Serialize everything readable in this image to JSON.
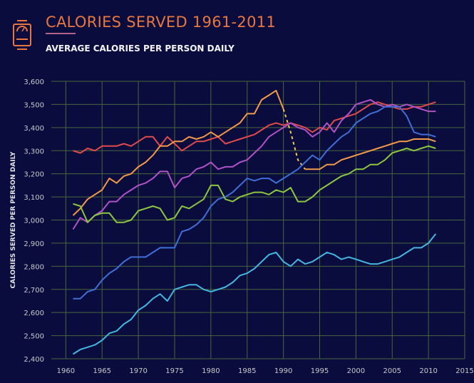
{
  "header": {
    "title": "CALORIES SERVED 1961-2011",
    "subtitle": "AVERAGE CALORIES PER PERSON DAILY",
    "icon": "scale-icon"
  },
  "colors": {
    "background": "#0a0c3e",
    "grid": "#48663c",
    "title": "#e8773f",
    "axis_text": "#c9c9c9"
  },
  "chart_data": {
    "type": "line",
    "title": "CALORIES SERVED 1961-2011",
    "subtitle": "AVERAGE CALORIES PER PERSON DAILY",
    "xlabel": "",
    "ylabel": "CALORIES SERVED PER PERSON DAILY",
    "xlim": [
      1958,
      2015
    ],
    "ylim": [
      2400,
      3600
    ],
    "xticks": [
      1960,
      1965,
      1970,
      1975,
      1980,
      1985,
      1990,
      1995,
      2000,
      2005,
      2010,
      2015
    ],
    "yticks": [
      2400,
      2500,
      2600,
      2700,
      2800,
      2900,
      3000,
      3100,
      3200,
      3300,
      3400,
      3500,
      3600
    ],
    "ytick_labels": [
      "2,400",
      "2,500",
      "2,600",
      "2,700",
      "2,800",
      "2,900",
      "3,000",
      "3,100",
      "3,200",
      "3,300",
      "3,400",
      "3,500",
      "3,600"
    ],
    "grid": true,
    "legend": "none",
    "series": [
      {
        "name": "red series",
        "color": "#e04b4b",
        "x": [
          1961,
          1962,
          1963,
          1964,
          1965,
          1966,
          1967,
          1968,
          1969,
          1970,
          1971,
          1972,
          1973,
          1974,
          1975,
          1976,
          1977,
          1978,
          1979,
          1980,
          1981,
          1982,
          1983,
          1984,
          1985,
          1986,
          1987,
          1988,
          1989,
          1990,
          1991,
          1992,
          1993,
          1994,
          1995,
          1996,
          1997,
          1998,
          1999,
          2000,
          2001,
          2002,
          2003,
          2004,
          2005,
          2006,
          2007,
          2008,
          2009,
          2010,
          2011
        ],
        "values": [
          3300,
          3290,
          3310,
          3300,
          3320,
          3320,
          3320,
          3330,
          3320,
          3340,
          3360,
          3360,
          3320,
          3360,
          3330,
          3300,
          3320,
          3340,
          3340,
          3350,
          3360,
          3330,
          3340,
          3350,
          3360,
          3370,
          3390,
          3410,
          3420,
          3410,
          3420,
          3410,
          3400,
          3380,
          3400,
          3390,
          3430,
          3440,
          3450,
          3460,
          3480,
          3500,
          3510,
          3500,
          3490,
          3480,
          3480,
          3490,
          3490,
          3500,
          3510
        ]
      },
      {
        "name": "orange series",
        "color": "#f2994a",
        "dashed_segment": [
          1990,
          1993
        ],
        "x": [
          1961,
          1962,
          1963,
          1964,
          1965,
          1966,
          1967,
          1968,
          1969,
          1970,
          1971,
          1972,
          1973,
          1974,
          1975,
          1976,
          1977,
          1978,
          1979,
          1980,
          1981,
          1982,
          1983,
          1984,
          1985,
          1986,
          1987,
          1988,
          1989,
          1990,
          1991,
          1992,
          1993,
          1994,
          1995,
          1996,
          1997,
          1998,
          1999,
          2000,
          2001,
          2002,
          2003,
          2004,
          2005,
          2006,
          2007,
          2008,
          2009,
          2010,
          2011
        ],
        "values": [
          3020,
          3050,
          3090,
          3110,
          3130,
          3180,
          3160,
          3190,
          3200,
          3230,
          3250,
          3280,
          3320,
          3320,
          3340,
          3340,
          3360,
          3350,
          3360,
          3380,
          3360,
          3380,
          3400,
          3420,
          3460,
          3460,
          3520,
          3540,
          3560,
          3480,
          3380,
          3260,
          3220,
          3220,
          3220,
          3240,
          3240,
          3260,
          3270,
          3280,
          3290,
          3300,
          3310,
          3320,
          3330,
          3340,
          3340,
          3350,
          3350,
          3350,
          3340
        ]
      },
      {
        "name": "purple series",
        "color": "#b052c8",
        "x": [
          1961,
          1962,
          1963,
          1964,
          1965,
          1966,
          1967,
          1968,
          1969,
          1970,
          1971,
          1972,
          1973,
          1974,
          1975,
          1976,
          1977,
          1978,
          1979,
          1980,
          1981,
          1982,
          1983,
          1984,
          1985,
          1986,
          1987,
          1988,
          1989,
          1990,
          1991,
          1992,
          1993,
          1994,
          1995,
          1996,
          1997,
          1998,
          1999,
          2000,
          2001,
          2002,
          2003,
          2004,
          2005,
          2006,
          2007,
          2008,
          2009,
          2010,
          2011
        ],
        "values": [
          2960,
          3010,
          2990,
          3020,
          3040,
          3080,
          3080,
          3110,
          3130,
          3150,
          3160,
          3180,
          3210,
          3210,
          3140,
          3180,
          3190,
          3220,
          3230,
          3250,
          3220,
          3230,
          3230,
          3250,
          3260,
          3290,
          3320,
          3360,
          3380,
          3400,
          3420,
          3400,
          3390,
          3360,
          3380,
          3420,
          3380,
          3430,
          3460,
          3500,
          3510,
          3520,
          3500,
          3490,
          3500,
          3490,
          3500,
          3490,
          3480,
          3470,
          3470
        ]
      },
      {
        "name": "blue series",
        "color": "#3f6fd6",
        "x": [
          1961,
          1962,
          1963,
          1964,
          1965,
          1966,
          1967,
          1968,
          1969,
          1970,
          1971,
          1972,
          1973,
          1974,
          1975,
          1976,
          1977,
          1978,
          1979,
          1980,
          1981,
          1982,
          1983,
          1984,
          1985,
          1986,
          1987,
          1988,
          1989,
          1990,
          1991,
          1992,
          1993,
          1994,
          1995,
          1996,
          1997,
          1998,
          1999,
          2000,
          2001,
          2002,
          2003,
          2004,
          2005,
          2006,
          2007,
          2008,
          2009,
          2010,
          2011
        ],
        "values": [
          2660,
          2660,
          2690,
          2700,
          2740,
          2770,
          2790,
          2820,
          2840,
          2840,
          2840,
          2860,
          2880,
          2880,
          2880,
          2950,
          2960,
          2980,
          3010,
          3060,
          3090,
          3100,
          3120,
          3150,
          3180,
          3170,
          3180,
          3180,
          3160,
          3180,
          3200,
          3220,
          3250,
          3280,
          3260,
          3300,
          3330,
          3360,
          3380,
          3420,
          3440,
          3460,
          3470,
          3490,
          3490,
          3490,
          3450,
          3380,
          3370,
          3370,
          3360
        ]
      },
      {
        "name": "green series",
        "color": "#8dc63f",
        "x": [
          1961,
          1962,
          1963,
          1964,
          1965,
          1966,
          1967,
          1968,
          1969,
          1970,
          1971,
          1972,
          1973,
          1974,
          1975,
          1976,
          1977,
          1978,
          1979,
          1980,
          1981,
          1982,
          1983,
          1984,
          1985,
          1986,
          1987,
          1988,
          1989,
          1990,
          1991,
          1992,
          1993,
          1994,
          1995,
          1996,
          1997,
          1998,
          1999,
          2000,
          2001,
          2002,
          2003,
          2004,
          2005,
          2006,
          2007,
          2008,
          2009,
          2010,
          2011
        ],
        "values": [
          3070,
          3060,
          2990,
          3020,
          3030,
          3030,
          2990,
          2990,
          3000,
          3040,
          3050,
          3060,
          3050,
          3000,
          3010,
          3060,
          3050,
          3070,
          3090,
          3150,
          3150,
          3090,
          3080,
          3100,
          3110,
          3120,
          3120,
          3110,
          3130,
          3120,
          3140,
          3080,
          3080,
          3100,
          3130,
          3150,
          3170,
          3190,
          3200,
          3220,
          3220,
          3240,
          3240,
          3260,
          3290,
          3300,
          3310,
          3300,
          3310,
          3320,
          3310
        ]
      },
      {
        "name": "light blue series",
        "color": "#45b6e0",
        "x": [
          1961,
          1962,
          1963,
          1964,
          1965,
          1966,
          1967,
          1968,
          1969,
          1970,
          1971,
          1972,
          1973,
          1974,
          1975,
          1976,
          1977,
          1978,
          1979,
          1980,
          1981,
          1982,
          1983,
          1984,
          1985,
          1986,
          1987,
          1988,
          1989,
          1990,
          1991,
          1992,
          1993,
          1994,
          1995,
          1996,
          1997,
          1998,
          1999,
          2000,
          2001,
          2002,
          2003,
          2004,
          2005,
          2006,
          2007,
          2008,
          2009,
          2010,
          2011
        ],
        "values": [
          2420,
          2440,
          2450,
          2460,
          2480,
          2510,
          2520,
          2550,
          2570,
          2610,
          2630,
          2660,
          2680,
          2650,
          2700,
          2710,
          2720,
          2720,
          2700,
          2690,
          2700,
          2710,
          2730,
          2760,
          2770,
          2790,
          2820,
          2850,
          2860,
          2820,
          2800,
          2830,
          2810,
          2820,
          2840,
          2860,
          2850,
          2830,
          2840,
          2830,
          2820,
          2810,
          2810,
          2820,
          2830,
          2840,
          2860,
          2880,
          2880,
          2900,
          2940
        ]
      }
    ]
  }
}
